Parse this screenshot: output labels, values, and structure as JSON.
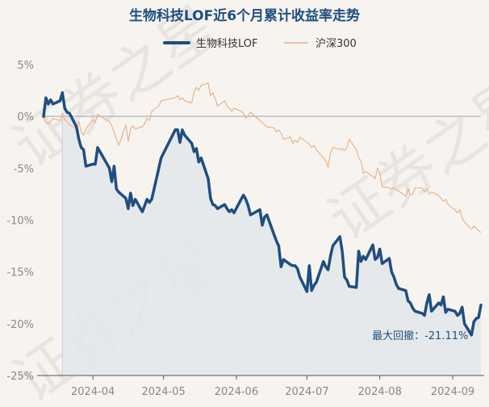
{
  "chart_data": {
    "type": "line",
    "title": "生物科技LOF近6个月累计收益率走势",
    "xlabel": "",
    "ylabel": "",
    "ylim": [
      -25,
      5
    ],
    "yticks": [
      5,
      0,
      -5,
      -10,
      -15,
      -20,
      -25
    ],
    "ytick_labels": [
      "5%",
      "0%",
      "-5%",
      "-10%",
      "-15%",
      "-20%",
      "-25%"
    ],
    "xtick_labels": [
      "2024-04",
      "2024-05",
      "2024-06",
      "2024-07",
      "2024-08",
      "2024-09"
    ],
    "xtick_dates": [
      "2024-04-01",
      "2024-05-01",
      "2024-06-01",
      "2024-07-01",
      "2024-08-01",
      "2024-09-01"
    ],
    "x_domain": [
      "2024-03-11",
      "2024-09-13"
    ],
    "legend_position": "top",
    "grid": false,
    "colors": {
      "fund": "#1f4e80",
      "index": "#e8b48a",
      "zero_line": "#bdbdbd",
      "area": "#e3e6ea",
      "text": "#888888"
    },
    "series": [
      {
        "name": "生物科技LOF",
        "points": [
          [
            "2024-03-11",
            0.0
          ],
          [
            "2024-03-12",
            1.8
          ],
          [
            "2024-03-13",
            1.2
          ],
          [
            "2024-03-14",
            1.6
          ],
          [
            "2024-03-15",
            1.2
          ],
          [
            "2024-03-18",
            1.5
          ],
          [
            "2024-03-19",
            2.3
          ],
          [
            "2024-03-20",
            0.8
          ],
          [
            "2024-03-21",
            0.4
          ],
          [
            "2024-03-22",
            0.3
          ],
          [
            "2024-03-25",
            -1.0
          ],
          [
            "2024-03-26",
            -2.2
          ],
          [
            "2024-03-27",
            -3.0
          ],
          [
            "2024-03-28",
            -3.2
          ],
          [
            "2024-03-29",
            -4.8
          ],
          [
            "2024-04-01",
            -4.6
          ],
          [
            "2024-04-02",
            -4.6
          ],
          [
            "2024-04-03",
            -3.0
          ],
          [
            "2024-04-08",
            -5.0
          ],
          [
            "2024-04-09",
            -6.3
          ],
          [
            "2024-04-10",
            -4.8
          ],
          [
            "2024-04-11",
            -7.0
          ],
          [
            "2024-04-12",
            -7.3
          ],
          [
            "2024-04-15",
            -7.9
          ],
          [
            "2024-04-16",
            -8.9
          ],
          [
            "2024-04-17",
            -7.4
          ],
          [
            "2024-04-18",
            -8.6
          ],
          [
            "2024-04-19",
            -8.0
          ],
          [
            "2024-04-22",
            -9.2
          ],
          [
            "2024-04-23",
            -8.6
          ],
          [
            "2024-04-24",
            -8.0
          ],
          [
            "2024-04-25",
            -8.3
          ],
          [
            "2024-04-26",
            -8.0
          ],
          [
            "2024-04-29",
            -5.0
          ],
          [
            "2024-04-30",
            -4.0
          ],
          [
            "2024-05-06",
            -1.3
          ],
          [
            "2024-05-07",
            -1.3
          ],
          [
            "2024-05-08",
            -2.5
          ],
          [
            "2024-05-09",
            -1.3
          ],
          [
            "2024-05-10",
            -1.8
          ],
          [
            "2024-05-13",
            -2.6
          ],
          [
            "2024-05-14",
            -3.4
          ],
          [
            "2024-05-15",
            -3.1
          ],
          [
            "2024-05-16",
            -4.4
          ],
          [
            "2024-05-17",
            -4.0
          ],
          [
            "2024-05-20",
            -6.0
          ],
          [
            "2024-05-21",
            -7.9
          ],
          [
            "2024-05-22",
            -8.5
          ],
          [
            "2024-05-23",
            -8.6
          ],
          [
            "2024-05-24",
            -8.9
          ],
          [
            "2024-05-27",
            -8.5
          ],
          [
            "2024-05-28",
            -8.9
          ],
          [
            "2024-05-29",
            -9.2
          ],
          [
            "2024-05-30",
            -9.0
          ],
          [
            "2024-05-31",
            -9.3
          ],
          [
            "2024-06-03",
            -8.0
          ],
          [
            "2024-06-04",
            -7.6
          ],
          [
            "2024-06-05",
            -8.0
          ],
          [
            "2024-06-06",
            -8.6
          ],
          [
            "2024-06-07",
            -9.5
          ],
          [
            "2024-06-11",
            -9.0
          ],
          [
            "2024-06-12",
            -10.5
          ],
          [
            "2024-06-13",
            -9.7
          ],
          [
            "2024-06-14",
            -9.5
          ],
          [
            "2024-06-17",
            -11.4
          ],
          [
            "2024-06-18",
            -12.0
          ],
          [
            "2024-06-19",
            -12.5
          ],
          [
            "2024-06-20",
            -14.5
          ],
          [
            "2024-06-21",
            -13.8
          ],
          [
            "2024-06-24",
            -14.3
          ],
          [
            "2024-06-25",
            -14.4
          ],
          [
            "2024-06-26",
            -14.4
          ],
          [
            "2024-06-27",
            -14.7
          ],
          [
            "2024-06-28",
            -15.5
          ],
          [
            "2024-07-01",
            -16.9
          ],
          [
            "2024-07-02",
            -14.4
          ],
          [
            "2024-07-03",
            -16.8
          ],
          [
            "2024-07-04",
            -16.3
          ],
          [
            "2024-07-05",
            -16.0
          ],
          [
            "2024-07-08",
            -14.0
          ],
          [
            "2024-07-09",
            -14.5
          ],
          [
            "2024-07-10",
            -14.8
          ],
          [
            "2024-07-11",
            -13.5
          ],
          [
            "2024-07-12",
            -12.5
          ],
          [
            "2024-07-15",
            -11.6
          ],
          [
            "2024-07-16",
            -13.0
          ],
          [
            "2024-07-17",
            -15.5
          ],
          [
            "2024-07-18",
            -15.8
          ],
          [
            "2024-07-19",
            -16.4
          ],
          [
            "2024-07-22",
            -16.5
          ],
          [
            "2024-07-23",
            -13.0
          ],
          [
            "2024-07-24",
            -14.0
          ],
          [
            "2024-07-25",
            -13.5
          ],
          [
            "2024-07-26",
            -13.8
          ],
          [
            "2024-07-29",
            -12.4
          ],
          [
            "2024-07-30",
            -13.8
          ],
          [
            "2024-07-31",
            -13.6
          ],
          [
            "2024-08-01",
            -12.8
          ],
          [
            "2024-08-02",
            -14.2
          ],
          [
            "2024-08-05",
            -13.7
          ],
          [
            "2024-08-06",
            -15.0
          ],
          [
            "2024-08-07",
            -15.5
          ],
          [
            "2024-08-08",
            -16.2
          ],
          [
            "2024-08-09",
            -16.6
          ],
          [
            "2024-08-12",
            -16.8
          ],
          [
            "2024-08-13",
            -17.8
          ],
          [
            "2024-08-14",
            -18.0
          ],
          [
            "2024-08-15",
            -18.5
          ],
          [
            "2024-08-16",
            -18.8
          ],
          [
            "2024-08-19",
            -19.0
          ],
          [
            "2024-08-20",
            -19.2
          ],
          [
            "2024-08-21",
            -18.0
          ],
          [
            "2024-08-22",
            -17.2
          ],
          [
            "2024-08-23",
            -18.8
          ],
          [
            "2024-08-26",
            -18.0
          ],
          [
            "2024-08-27",
            -18.2
          ],
          [
            "2024-08-28",
            -17.4
          ],
          [
            "2024-08-29",
            -18.9
          ],
          [
            "2024-08-30",
            -18.6
          ],
          [
            "2024-09-02",
            -18.8
          ],
          [
            "2024-09-03",
            -19.2
          ],
          [
            "2024-09-04",
            -19.0
          ],
          [
            "2024-09-05",
            -18.4
          ],
          [
            "2024-09-06",
            -20.0
          ],
          [
            "2024-09-09",
            -21.1
          ],
          [
            "2024-09-10",
            -19.8
          ],
          [
            "2024-09-11",
            -19.5
          ],
          [
            "2024-09-12",
            -19.4
          ],
          [
            "2024-09-13",
            -18.2
          ]
        ]
      },
      {
        "name": "沪深300",
        "points": [
          [
            "2024-03-11",
            0.0
          ],
          [
            "2024-03-12",
            -0.6
          ],
          [
            "2024-03-13",
            -0.7
          ],
          [
            "2024-03-14",
            -0.5
          ],
          [
            "2024-03-15",
            -0.2
          ],
          [
            "2024-03-18",
            -0.4
          ],
          [
            "2024-03-19",
            0.3
          ],
          [
            "2024-03-20",
            -0.3
          ],
          [
            "2024-03-21",
            -0.5
          ],
          [
            "2024-03-22",
            -0.8
          ],
          [
            "2024-03-25",
            -1.2
          ],
          [
            "2024-03-26",
            -0.5
          ],
          [
            "2024-03-27",
            -1.5
          ],
          [
            "2024-03-28",
            -1.8
          ],
          [
            "2024-03-29",
            -1.2
          ],
          [
            "2024-04-01",
            -0.3
          ],
          [
            "2024-04-02",
            -0.6
          ],
          [
            "2024-04-03",
            0.2
          ],
          [
            "2024-04-08",
            -0.5
          ],
          [
            "2024-04-09",
            -0.9
          ],
          [
            "2024-04-10",
            -1.5
          ],
          [
            "2024-04-11",
            -2.2
          ],
          [
            "2024-04-12",
            -2.8
          ],
          [
            "2024-04-15",
            -0.8
          ],
          [
            "2024-04-16",
            -2.4
          ],
          [
            "2024-04-17",
            -1.2
          ],
          [
            "2024-04-18",
            -0.9
          ],
          [
            "2024-04-19",
            -1.2
          ],
          [
            "2024-04-22",
            -1.0
          ],
          [
            "2024-04-23",
            -0.7
          ],
          [
            "2024-04-24",
            -0.2
          ],
          [
            "2024-04-25",
            -0.4
          ],
          [
            "2024-04-26",
            0.5
          ],
          [
            "2024-04-29",
            1.0
          ],
          [
            "2024-04-30",
            1.5
          ],
          [
            "2024-05-06",
            1.8
          ],
          [
            "2024-05-07",
            2.0
          ],
          [
            "2024-05-08",
            1.6
          ],
          [
            "2024-05-09",
            1.8
          ],
          [
            "2024-05-10",
            1.5
          ],
          [
            "2024-05-13",
            1.3
          ],
          [
            "2024-05-14",
            2.4
          ],
          [
            "2024-05-15",
            2.8
          ],
          [
            "2024-05-16",
            2.5
          ],
          [
            "2024-05-17",
            3.0
          ],
          [
            "2024-05-20",
            3.2
          ],
          [
            "2024-05-21",
            2.0
          ],
          [
            "2024-05-22",
            2.3
          ],
          [
            "2024-05-23",
            1.7
          ],
          [
            "2024-05-24",
            1.0
          ],
          [
            "2024-05-27",
            1.5
          ],
          [
            "2024-05-28",
            1.0
          ],
          [
            "2024-05-29",
            0.8
          ],
          [
            "2024-05-30",
            0.5
          ],
          [
            "2024-05-31",
            0.8
          ],
          [
            "2024-06-03",
            0.5
          ],
          [
            "2024-06-04",
            0.3
          ],
          [
            "2024-06-05",
            -0.2
          ],
          [
            "2024-06-06",
            0.1
          ],
          [
            "2024-06-07",
            0.4
          ],
          [
            "2024-06-11",
            -0.4
          ],
          [
            "2024-06-12",
            -0.6
          ],
          [
            "2024-06-13",
            -0.8
          ],
          [
            "2024-06-14",
            -1.0
          ],
          [
            "2024-06-17",
            -1.1
          ],
          [
            "2024-06-18",
            -1.5
          ],
          [
            "2024-06-19",
            -1.3
          ],
          [
            "2024-06-20",
            -1.6
          ],
          [
            "2024-06-21",
            -2.2
          ],
          [
            "2024-06-24",
            -2.0
          ],
          [
            "2024-06-25",
            -2.6
          ],
          [
            "2024-06-26",
            -2.3
          ],
          [
            "2024-06-27",
            -2.5
          ],
          [
            "2024-06-28",
            -2.0
          ],
          [
            "2024-07-01",
            -2.5
          ],
          [
            "2024-07-02",
            -2.7
          ],
          [
            "2024-07-03",
            -3.0
          ],
          [
            "2024-07-04",
            -2.8
          ],
          [
            "2024-07-05",
            -3.2
          ],
          [
            "2024-07-08",
            -4.0
          ],
          [
            "2024-07-09",
            -4.3
          ],
          [
            "2024-07-10",
            -4.9
          ],
          [
            "2024-07-11",
            -3.5
          ],
          [
            "2024-07-12",
            -3.0
          ],
          [
            "2024-07-15",
            -3.2
          ],
          [
            "2024-07-16",
            -3.1
          ],
          [
            "2024-07-17",
            -3.3
          ],
          [
            "2024-07-18",
            -3.0
          ],
          [
            "2024-07-19",
            -2.2
          ],
          [
            "2024-07-22",
            -3.2
          ],
          [
            "2024-07-23",
            -4.0
          ],
          [
            "2024-07-24",
            -4.3
          ],
          [
            "2024-07-25",
            -5.5
          ],
          [
            "2024-07-26",
            -5.3
          ],
          [
            "2024-07-29",
            -5.8
          ],
          [
            "2024-07-30",
            -6.0
          ],
          [
            "2024-07-31",
            -5.0
          ],
          [
            "2024-08-01",
            -5.5
          ],
          [
            "2024-08-02",
            -6.8
          ],
          [
            "2024-08-05",
            -6.9
          ],
          [
            "2024-08-06",
            -7.0
          ],
          [
            "2024-08-07",
            -6.9
          ],
          [
            "2024-08-08",
            -7.1
          ],
          [
            "2024-08-09",
            -7.2
          ],
          [
            "2024-08-12",
            -7.7
          ],
          [
            "2024-08-13",
            -7.0
          ],
          [
            "2024-08-14",
            -7.6
          ],
          [
            "2024-08-15",
            -7.5
          ],
          [
            "2024-08-16",
            -6.9
          ],
          [
            "2024-08-19",
            -6.9
          ],
          [
            "2024-08-20",
            -7.3
          ],
          [
            "2024-08-21",
            -7.0
          ],
          [
            "2024-08-22",
            -7.5
          ],
          [
            "2024-08-23",
            -7.3
          ],
          [
            "2024-08-26",
            -7.6
          ],
          [
            "2024-08-27",
            -7.9
          ],
          [
            "2024-08-28",
            -8.2
          ],
          [
            "2024-08-29",
            -8.0
          ],
          [
            "2024-08-30",
            -8.5
          ],
          [
            "2024-09-02",
            -9.0
          ],
          [
            "2024-09-03",
            -9.3
          ],
          [
            "2024-09-04",
            -9.0
          ],
          [
            "2024-09-05",
            -9.8
          ],
          [
            "2024-09-06",
            -10.2
          ],
          [
            "2024-09-09",
            -10.9
          ],
          [
            "2024-09-10",
            -10.6
          ],
          [
            "2024-09-11",
            -10.8
          ],
          [
            "2024-09-12",
            -11.0
          ],
          [
            "2024-09-13",
            -11.2
          ]
        ]
      }
    ],
    "annotations": [
      {
        "text": "最大回撤：-21.11%",
        "series": 0,
        "date": "2024-09-09",
        "value": -21.11
      }
    ],
    "drawdown_start": "2024-03-19",
    "watermark": "证券之星"
  }
}
